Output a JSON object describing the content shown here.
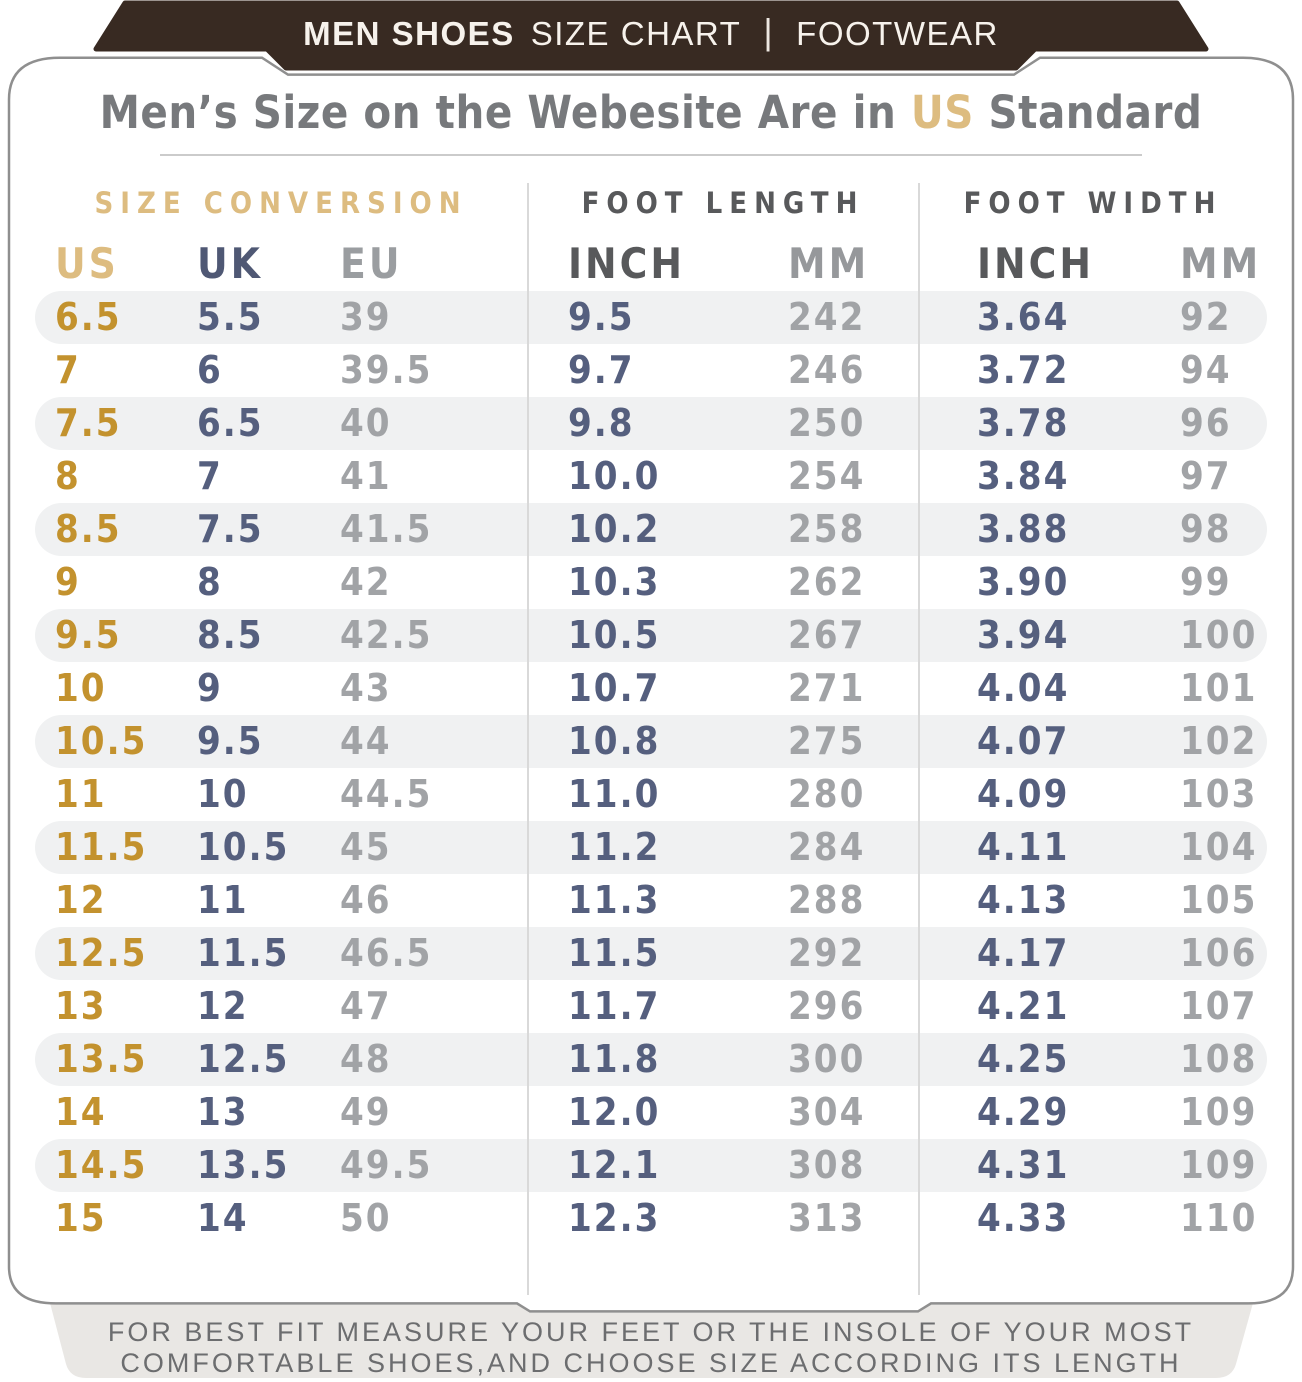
{
  "banner": {
    "title_bold": "MEN SHOES",
    "title_regular": "SIZE CHART",
    "divider": "|",
    "right": "FOOTWEAR"
  },
  "title": {
    "prefix": "Men’s Size on the Webesite Are in ",
    "highlight": "US",
    "suffix": " Standard"
  },
  "groups": [
    "SIZE CONVERSION",
    "FOOT LENGTH",
    "FOOT WIDTH"
  ],
  "chart_data": {
    "type": "table",
    "title": "Men Shoes Size Chart (US Standard)",
    "column_groups": [
      "SIZE CONVERSION",
      "FOOT LENGTH",
      "FOOT WIDTH"
    ],
    "columns": [
      "US",
      "UK",
      "EU",
      "INCH",
      "MM",
      "INCH",
      "MM"
    ],
    "rows": [
      [
        "6.5",
        "5.5",
        "39",
        "9.5",
        "242",
        "3.64",
        "92"
      ],
      [
        "7",
        "6",
        "39.5",
        "9.7",
        "246",
        "3.72",
        "94"
      ],
      [
        "7.5",
        "6.5",
        "40",
        "9.8",
        "250",
        "3.78",
        "96"
      ],
      [
        "8",
        "7",
        "41",
        "10.0",
        "254",
        "3.84",
        "97"
      ],
      [
        "8.5",
        "7.5",
        "41.5",
        "10.2",
        "258",
        "3.88",
        "98"
      ],
      [
        "9",
        "8",
        "42",
        "10.3",
        "262",
        "3.90",
        "99"
      ],
      [
        "9.5",
        "8.5",
        "42.5",
        "10.5",
        "267",
        "3.94",
        "100"
      ],
      [
        "10",
        "9",
        "43",
        "10.7",
        "271",
        "4.04",
        "101"
      ],
      [
        "10.5",
        "9.5",
        "44",
        "10.8",
        "275",
        "4.07",
        "102"
      ],
      [
        "11",
        "10",
        "44.5",
        "11.0",
        "280",
        "4.09",
        "103"
      ],
      [
        "11.5",
        "10.5",
        "45",
        "11.2",
        "284",
        "4.11",
        "104"
      ],
      [
        "12",
        "11",
        "46",
        "11.3",
        "288",
        "4.13",
        "105"
      ],
      [
        "12.5",
        "11.5",
        "46.5",
        "11.5",
        "292",
        "4.17",
        "106"
      ],
      [
        "13",
        "12",
        "47",
        "11.7",
        "296",
        "4.21",
        "107"
      ],
      [
        "13.5",
        "12.5",
        "48",
        "11.8",
        "300",
        "4.25",
        "108"
      ],
      [
        "14",
        "13",
        "49",
        "12.0",
        "304",
        "4.29",
        "109"
      ],
      [
        "14.5",
        "13.5",
        "49.5",
        "12.1",
        "308",
        "4.31",
        "109"
      ],
      [
        "15",
        "14",
        "50",
        "12.3",
        "313",
        "4.33",
        "110"
      ]
    ]
  },
  "footer": {
    "line1": "FOR BEST FIT MEASURE YOUR FEET OR THE INSOLE OF YOUR MOST",
    "line2": "COMFORTABLE SHOES,AND CHOOSE SIZE ACCORDING ITS LENGTH"
  },
  "colors": {
    "banner_brown": "#382a22",
    "banner_text": "#f7f2ec",
    "gold_light": "#ddbc80",
    "gold_value": "#c3922e",
    "slate_value": "#555f7e",
    "gray_value": "#a1a3a6",
    "header_dark_gray": "#58595b",
    "header_mid_gray": "#96989b",
    "title_gray": "#77797c",
    "row_stripe": "#f0f1f2",
    "card_border": "#8f8f8f",
    "footer_bg": "#e9e7e4",
    "footer_text": "#6c6d6f"
  }
}
